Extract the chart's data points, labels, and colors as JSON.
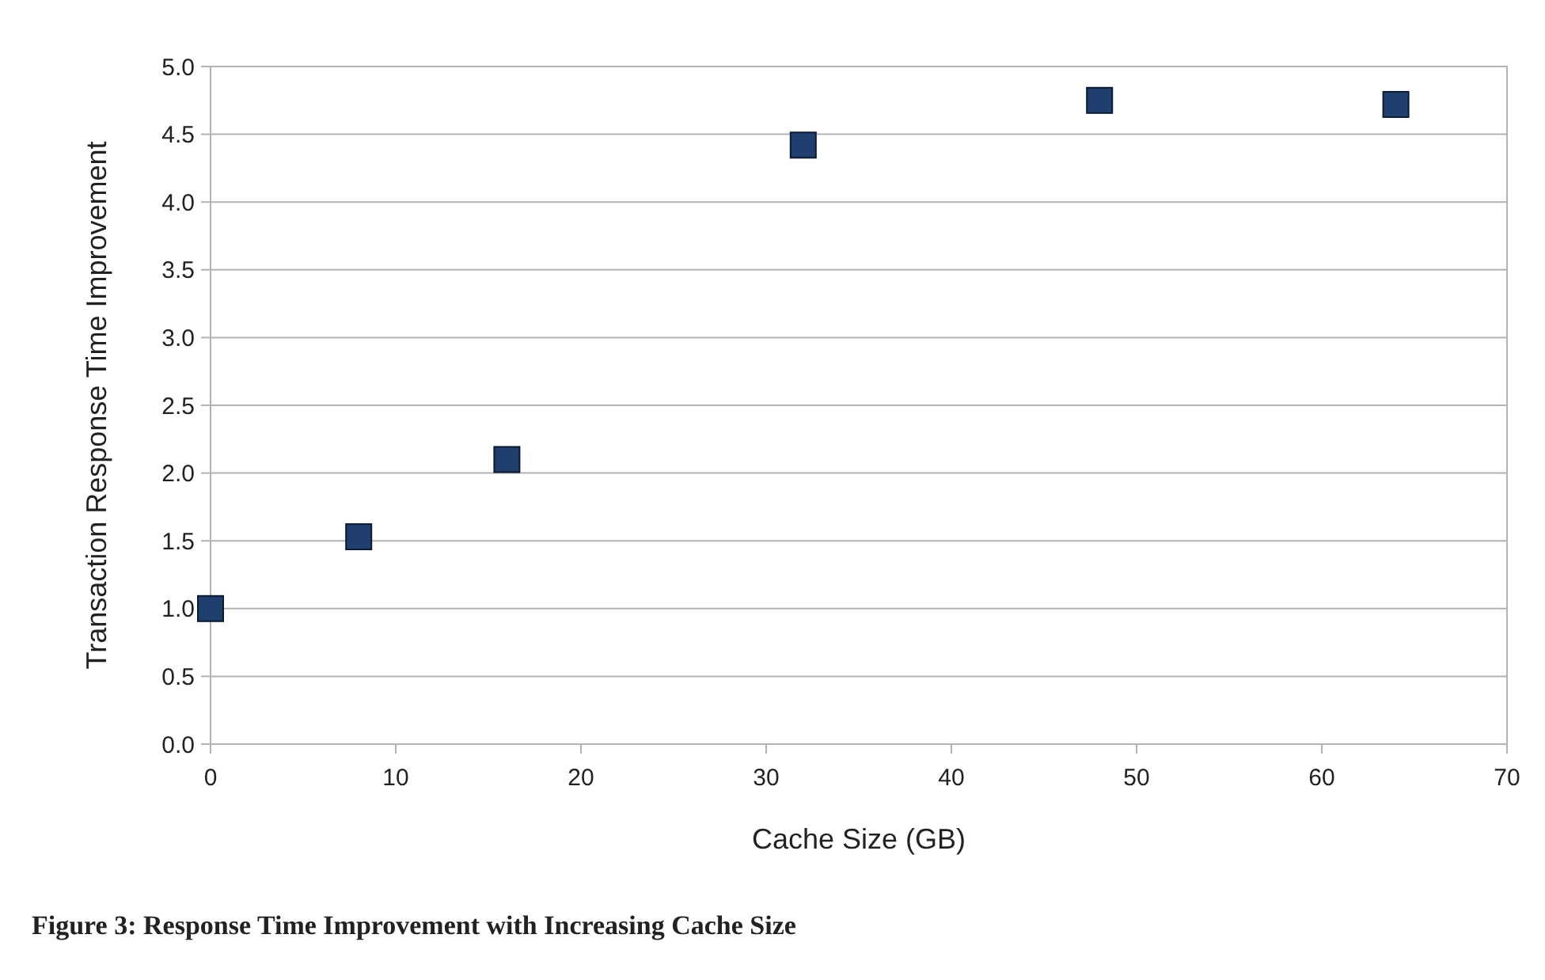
{
  "chart_data": {
    "type": "scatter",
    "xlabel": "Cache Size (GB)",
    "ylabel": "Transaction Response Time Improvement",
    "x": [
      0,
      8,
      16,
      32,
      48,
      64
    ],
    "series": [
      {
        "color": "#1f3f6e",
        "values": [
          1.0,
          1.53,
          2.1,
          4.42,
          4.75,
          4.72
        ]
      }
    ],
    "xlim": [
      0,
      70
    ],
    "xticks": [
      0,
      10,
      20,
      30,
      40,
      50,
      60,
      70
    ],
    "ylim": [
      0,
      5
    ],
    "yticks": [
      {
        "value": 0,
        "label": "0.0"
      },
      {
        "value": 0.5,
        "label": "0.5"
      },
      {
        "value": 1,
        "label": "1.0"
      },
      {
        "value": 1.5,
        "label": "1.5"
      },
      {
        "value": 2,
        "label": "2.0"
      },
      {
        "value": 2.5,
        "label": "2.5"
      },
      {
        "value": 3,
        "label": "3.0"
      },
      {
        "value": 3.5,
        "label": "3.5"
      },
      {
        "value": 4,
        "label": "4.0"
      },
      {
        "value": 4.5,
        "label": "4.5"
      },
      {
        "value": 5,
        "label": "5.0"
      }
    ],
    "grid": "y",
    "marker": "square",
    "annotations": [
      "Figure 3: Response Time Improvement with Increasing Cache Size"
    ]
  }
}
